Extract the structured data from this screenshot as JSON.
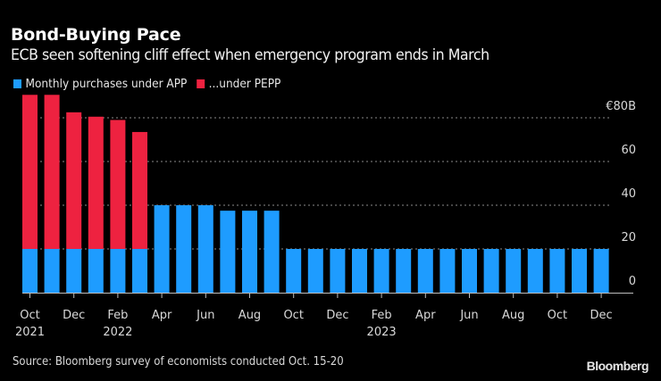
{
  "header": {
    "title": "Bond-Buying Pace",
    "subtitle": "ECB seen softening cliff effect when emergency program ends in March"
  },
  "footer": {
    "source": "Source: Bloomberg survey of economists conducted Oct. 15-20",
    "logo": "Bloomberg"
  },
  "colors": {
    "background": "#000000",
    "app": "#1e9cff",
    "pepp": "#ee2240",
    "grid": "#8a8a8a",
    "axis": "#bdbdbd"
  },
  "chart_data": {
    "type": "bar",
    "stacked": true,
    "title": "Bond-Buying Pace",
    "subtitle": "ECB seen softening cliff effect when emergency program ends in March",
    "xlabel": "",
    "ylabel": "",
    "ylim": [
      0,
      80
    ],
    "yticks": [
      0,
      20,
      40,
      60,
      80
    ],
    "ytick_labels": [
      "0",
      "20",
      "40",
      "60",
      "€80B"
    ],
    "y_axis_position": "right",
    "grid": true,
    "legend_position": "top-left",
    "categories": [
      "Oct 2021",
      "Nov 2021",
      "Dec 2021",
      "Jan 2022",
      "Feb 2022",
      "Mar 2022",
      "Apr 2022",
      "May 2022",
      "Jun 2022",
      "Jul 2022",
      "Aug 2022",
      "Sep 2022",
      "Oct 2022",
      "Nov 2022",
      "Dec 2022",
      "Jan 2023",
      "Feb 2023",
      "Mar 2023",
      "Apr 2023",
      "May 2023",
      "Jun 2023",
      "Jul 2023",
      "Aug 2023",
      "Sep 2023",
      "Oct 2023",
      "Nov 2023",
      "Dec 2023"
    ],
    "xticks": [
      {
        "index": 0,
        "label": "Oct",
        "year": "2021"
      },
      {
        "index": 2,
        "label": "Dec",
        "year": ""
      },
      {
        "index": 4,
        "label": "Feb",
        "year": "2022"
      },
      {
        "index": 6,
        "label": "Apr",
        "year": ""
      },
      {
        "index": 8,
        "label": "Jun",
        "year": ""
      },
      {
        "index": 10,
        "label": "Aug",
        "year": ""
      },
      {
        "index": 12,
        "label": "Oct",
        "year": ""
      },
      {
        "index": 14,
        "label": "Dec",
        "year": ""
      },
      {
        "index": 16,
        "label": "Feb",
        "year": "2023"
      },
      {
        "index": 18,
        "label": "Apr",
        "year": ""
      },
      {
        "index": 20,
        "label": "Jun",
        "year": ""
      },
      {
        "index": 22,
        "label": "Aug",
        "year": ""
      },
      {
        "index": 24,
        "label": "Oct",
        "year": ""
      },
      {
        "index": 26,
        "label": "Dec",
        "year": ""
      }
    ],
    "series": [
      {
        "name": "Monthly purchases under APP",
        "color": "#1e9cff",
        "values": [
          20,
          20,
          20,
          20,
          20,
          20,
          40,
          40,
          40,
          37.5,
          37.5,
          37.5,
          20,
          20,
          20,
          20,
          20,
          20,
          20,
          20,
          20,
          20,
          20,
          20,
          20,
          20,
          20
        ]
      },
      {
        "name": "...under PEPP",
        "color": "#ee2240",
        "values": [
          70.5,
          70.5,
          62.5,
          60.5,
          59,
          53.5,
          0,
          0,
          0,
          0,
          0,
          0,
          0,
          0,
          0,
          0,
          0,
          0,
          0,
          0,
          0,
          0,
          0,
          0,
          0,
          0,
          0
        ]
      }
    ]
  }
}
